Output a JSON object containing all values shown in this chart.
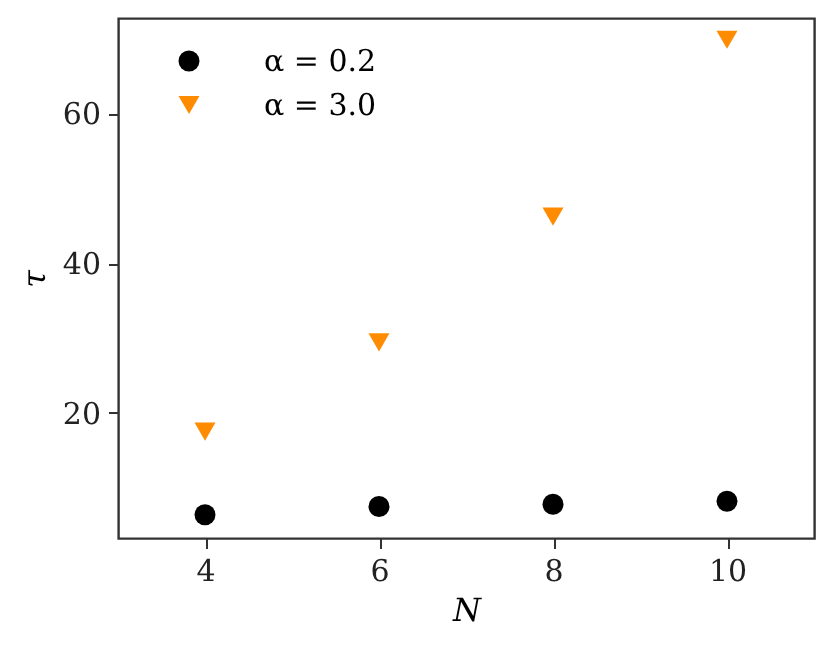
{
  "chart_data": {
    "type": "scatter",
    "xlabel": "N",
    "ylabel": "τ",
    "x": [
      4,
      6,
      8,
      10
    ],
    "series": [
      {
        "name": "α = 0.2",
        "color": "#000000",
        "marker": "circle",
        "values": [
          6.4,
          7.5,
          7.8,
          8.2
        ]
      },
      {
        "name": "α = 3.0",
        "color": "#ff8c00",
        "marker": "triangle-down",
        "values": [
          17.5,
          29.4,
          46.2,
          69.8
        ]
      }
    ],
    "xlim": [
      3,
      11
    ],
    "ylim": [
      3.3,
      72.7
    ],
    "xticks": [
      4,
      6,
      8,
      10
    ],
    "yticks": [
      20,
      40,
      60
    ],
    "grid": false,
    "legend": "top left"
  }
}
